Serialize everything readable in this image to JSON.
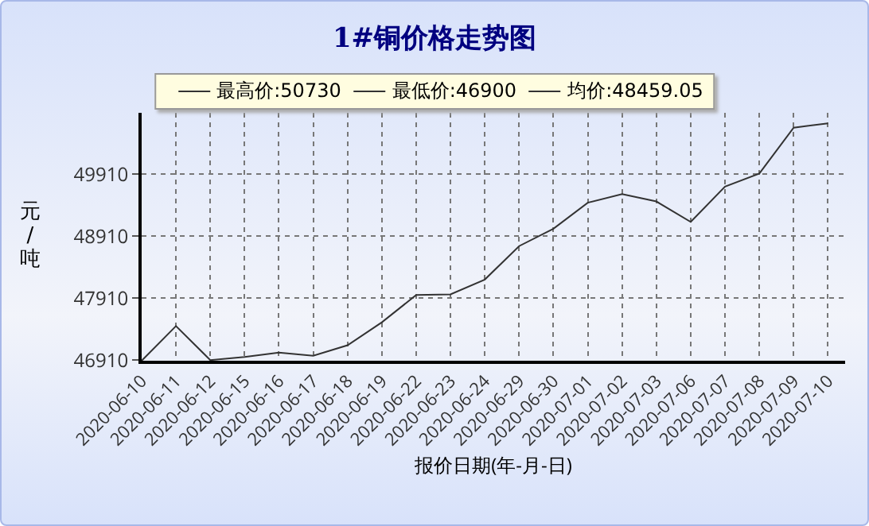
{
  "chart_data": {
    "type": "line",
    "title": "1#铜价格走势图",
    "xlabel": "报价日期(年-月-日)",
    "ylabel": "元/吨",
    "annotations": [
      "最高价:50730",
      "最低价:46900",
      "均价:48459.05"
    ],
    "categories": [
      "2020-06-10",
      "2020-06-11",
      "2020-06-12",
      "2020-06-15",
      "2020-06-16",
      "2020-06-17",
      "2020-06-18",
      "2020-06-19",
      "2020-06-22",
      "2020-06-23",
      "2020-06-24",
      "2020-06-29",
      "2020-06-30",
      "2020-07-01",
      "2020-07-02",
      "2020-07-03",
      "2020-07-06",
      "2020-07-07",
      "2020-07-08",
      "2020-07-09",
      "2020-07-10"
    ],
    "series": [
      {
        "color": "#333333",
        "values": [
          46900,
          47460,
          46910,
          46960,
          47030,
          46980,
          47150,
          47520,
          47960,
          47970,
          48210,
          48750,
          49030,
          49450,
          49590,
          49470,
          49140,
          49710,
          49920,
          50660,
          50730
        ]
      }
    ],
    "ylim": [
      46900,
      50900
    ],
    "yticks": [
      46910,
      47910,
      48910,
      49910
    ],
    "grid": true,
    "line_style": "solid",
    "marker": "none"
  }
}
